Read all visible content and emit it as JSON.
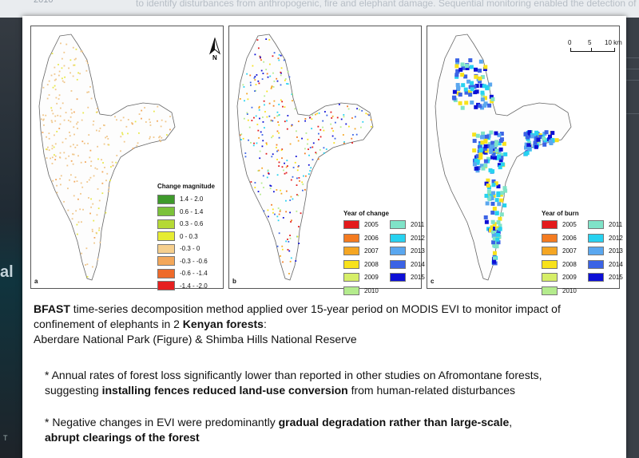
{
  "background": {
    "top_text": "to identify disturbances from anthropogenic, fire and elephant damage. Sequential monitoring enabled the detection of grad",
    "top_year": "2010",
    "left_fragment": "al",
    "left_fragment_2": "T"
  },
  "figure": {
    "panel_a": {
      "label": "a",
      "legend_title": "Change magnitude",
      "legend": [
        {
          "label": "1.4 - 2.0",
          "color": "#3f9a2c"
        },
        {
          "label": "0.6 - 1.4",
          "color": "#7cc23a"
        },
        {
          "label": "0.3 - 0.6",
          "color": "#b5d935"
        },
        {
          "label": "0 - 0.3",
          "color": "#e6ec32"
        },
        {
          "label": "-0.3 - 0",
          "color": "#f6cf8d"
        },
        {
          "label": "-0.3 - -0.6",
          "color": "#f3a75a"
        },
        {
          "label": "-0.6 - -1.4",
          "color": "#ee6a2a"
        },
        {
          "label": "-1.4 - -2.0",
          "color": "#e51f1f"
        }
      ],
      "north_label": "N"
    },
    "panel_b": {
      "label": "b",
      "legend_title": "Year of change",
      "years": [
        {
          "label": "2005",
          "color": "#e31a1c"
        },
        {
          "label": "2011",
          "color": "#7fe3c8"
        },
        {
          "label": "2006",
          "color": "#f47b20"
        },
        {
          "label": "2012",
          "color": "#27d2f0"
        },
        {
          "label": "2007",
          "color": "#f5a623"
        },
        {
          "label": "2013",
          "color": "#5aa7ef"
        },
        {
          "label": "2008",
          "color": "#f8e21b"
        },
        {
          "label": "2014",
          "color": "#3b63e5"
        },
        {
          "label": "2009",
          "color": "#d6ee68"
        },
        {
          "label": "2015",
          "color": "#0d0fd6"
        },
        {
          "label": "2010",
          "color": "#b4eb8d"
        }
      ]
    },
    "panel_c": {
      "label": "c",
      "legend_title": "Year of burn",
      "scale": {
        "t0": "0",
        "t1": "5",
        "t2": "10 km"
      }
    }
  },
  "caption": {
    "line1_bold": "BFAST",
    "line1_rest": " time-series decomposition method applied over 15-year period on MODIS EVI to monitor impact of",
    "line2_pre": "confinement of elephants in 2 ",
    "line2_bold": "Kenyan forests",
    "line2_post": ":",
    "line3": "Aberdare National Park (Figure) & Shimba Hills National Reserve"
  },
  "bullets": {
    "b1_line1": "* Annual rates of forest loss significantly lower than reported in other studies on Afromontane forests,",
    "b1_line2_pre": "suggesting ",
    "b1_line2_bold": "installing fences reduced land-use conversion",
    "b1_line2_post": " from human-related disturbances",
    "b2_line1_pre": "* Negative changes in EVI were predominantly ",
    "b2_line1_bold": "gradual degradation rather than large-scale",
    "b2_line1_post": ",",
    "b2_line2_bold": "abrupt clearings of the forest"
  }
}
